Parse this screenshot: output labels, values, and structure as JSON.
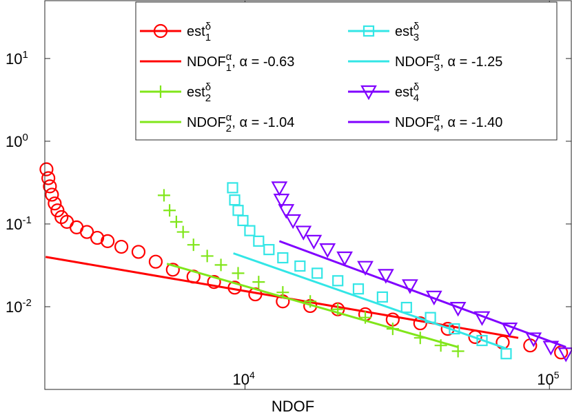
{
  "chart_data": {
    "type": "line",
    "xlabel": "NDOF",
    "xscale": "log",
    "yscale": "log",
    "xlim": [
      2200,
      118000
    ],
    "ylim": [
      0.001,
      50
    ],
    "xticks": [
      {
        "value": 10000,
        "label": "10^4"
      },
      {
        "value": 100000,
        "label": "10^5"
      }
    ],
    "yticks": [
      {
        "value": 0.01,
        "label": "10^-2"
      },
      {
        "value": 0.1,
        "label": "10^-1"
      },
      {
        "value": 1,
        "label": "10^0"
      },
      {
        "value": 10,
        "label": "10^1"
      }
    ],
    "legend": "top-right",
    "series": [
      {
        "name": "est_1^δ",
        "color": "#ff0000",
        "marker": "circle",
        "line": false,
        "x": [
          2228,
          2260,
          2286,
          2322,
          2371,
          2421,
          2496,
          2600,
          2798,
          3025,
          3271,
          3538,
          3926,
          4469,
          5090,
          5795,
          6774,
          7914,
          9250,
          10810,
          13310,
          16380,
          20180,
          24840,
          30570,
          37640,
          46340,
          57040,
          70240,
          86460,
          109200
        ],
        "values": [
          0.458,
          0.358,
          0.285,
          0.226,
          0.177,
          0.146,
          0.121,
          0.106,
          0.091,
          0.08,
          0.068,
          0.062,
          0.053,
          0.046,
          0.035,
          0.028,
          0.0231,
          0.0199,
          0.017,
          0.0141,
          0.0116,
          0.0102,
          0.0093,
          0.0081,
          0.007,
          0.0063,
          0.0054,
          0.0043,
          0.0037,
          0.0034,
          0.0028
        ]
      },
      {
        "name": "NDOF_1^α, α = -0.63",
        "color": "#ff0000",
        "marker": "none",
        "line": true,
        "x": [
          2214,
          79000
        ],
        "values": [
          0.04,
          0.0042
        ]
      },
      {
        "name": "est_2^δ",
        "color": "#80e61a",
        "marker": "plus",
        "line": false,
        "x": [
          5419,
          5654,
          5950,
          6262,
          6774,
          7515,
          8337,
          9493,
          11090,
          13310,
          16380,
          20180,
          24840,
          30570,
          37640,
          43980,
          50100
        ],
        "values": [
          0.222,
          0.146,
          0.106,
          0.08,
          0.056,
          0.041,
          0.032,
          0.0254,
          0.0199,
          0.0149,
          0.0116,
          0.0093,
          0.0074,
          0.0054,
          0.0042,
          0.0034,
          0.0029
        ]
      },
      {
        "name": "NDOF_2^α, α = -1.04",
        "color": "#80e61a",
        "marker": "none",
        "line": true,
        "x": [
          5540,
          50100
        ],
        "values": [
          0.033,
          0.00325
        ]
      },
      {
        "name": "est_3^δ",
        "color": "#33e6e6",
        "marker": "square",
        "line": false,
        "x": [
          9105,
          9250,
          9493,
          9845,
          10370,
          11090,
          11990,
          13310,
          15160,
          17260,
          20180,
          23570,
          28270,
          33920,
          40660,
          48750,
          60080,
          72090
        ],
        "values": [
          0.274,
          0.195,
          0.146,
          0.11,
          0.083,
          0.062,
          0.049,
          0.039,
          0.031,
          0.0254,
          0.0206,
          0.0164,
          0.0131,
          0.0098,
          0.0074,
          0.0054,
          0.0039,
          0.0027
        ]
      },
      {
        "name": "NDOF_3^α, α = -1.25",
        "color": "#33e6e6",
        "marker": "none",
        "line": true,
        "x": [
          9160,
          72090
        ],
        "values": [
          0.0442,
          0.00313
        ]
      },
      {
        "name": "est_4^δ",
        "color": "#8000ff",
        "marker": "triangle-down",
        "line": false,
        "x": [
          12970,
          13180,
          13660,
          14380,
          15560,
          16830,
          18670,
          21250,
          24840,
          29020,
          34830,
          41780,
          50100,
          60080,
          73960,
          88720,
          101100,
          113300
        ],
        "values": [
          0.274,
          0.195,
          0.146,
          0.11,
          0.08,
          0.062,
          0.049,
          0.039,
          0.03,
          0.024,
          0.018,
          0.0131,
          0.0096,
          0.0074,
          0.0054,
          0.0041,
          0.00325,
          0.0027
        ]
      },
      {
        "name": "NDOF_4^α, α = -1.40",
        "color": "#8000ff",
        "marker": "none",
        "line": true,
        "x": [
          12970,
          113300
        ],
        "values": [
          0.062,
          0.00325
        ]
      }
    ]
  }
}
